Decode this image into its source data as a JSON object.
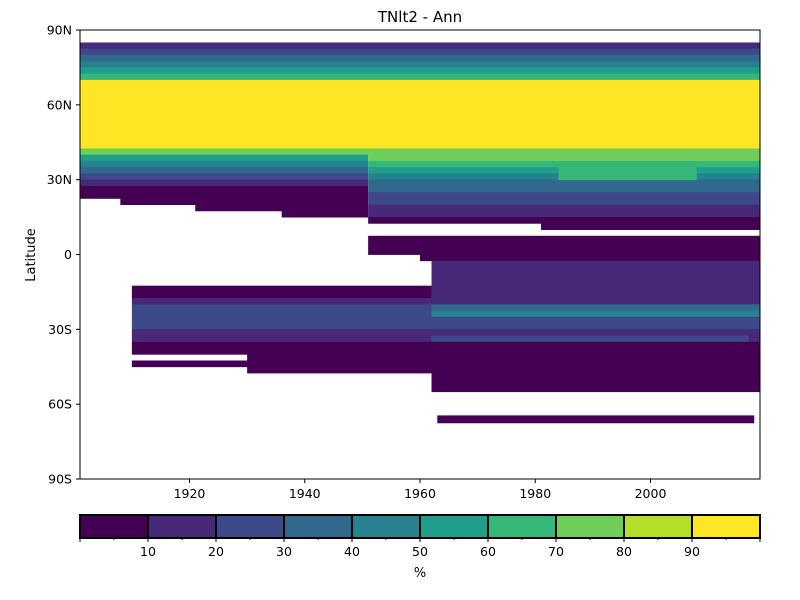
{
  "chart_data": {
    "type": "heatmap",
    "title": "TNlt2 - Ann",
    "xlabel": "",
    "ylabel": "Latitude",
    "xlim": [
      1901,
      2019
    ],
    "ylim": [
      -90,
      90
    ],
    "x_ticks": [
      {
        "value": 1920,
        "label": "1920"
      },
      {
        "value": 1940,
        "label": "1940"
      },
      {
        "value": 1960,
        "label": "1960"
      },
      {
        "value": 1980,
        "label": "1980"
      },
      {
        "value": 2000,
        "label": "2000"
      }
    ],
    "y_ticks": [
      {
        "value": 90,
        "label": "90N"
      },
      {
        "value": 60,
        "label": "60N"
      },
      {
        "value": 30,
        "label": "30N"
      },
      {
        "value": 0,
        "label": "0"
      },
      {
        "value": -30,
        "label": "30S"
      },
      {
        "value": -60,
        "label": "60S"
      },
      {
        "value": -90,
        "label": "90S"
      }
    ],
    "colorbar": {
      "label": "%",
      "range": [
        0,
        100
      ],
      "boundaries": [
        0,
        10,
        20,
        30,
        40,
        50,
        60,
        70,
        80,
        90,
        100
      ],
      "tick_labels": [
        "10",
        "20",
        "30",
        "40",
        "50",
        "60",
        "70",
        "80",
        "90"
      ],
      "colors": [
        "#440154",
        "#482878",
        "#3e4989",
        "#31688e",
        "#26828e",
        "#1f9e89",
        "#35b779",
        "#6ece58",
        "#b5de2b",
        "#fde725"
      ]
    },
    "cell_height_deg": 2.5,
    "bands": [
      {
        "lat": [
          82.5,
          85
        ],
        "x": [
          1901,
          2019
        ],
        "value": 15
      },
      {
        "lat": [
          80,
          82.5
        ],
        "x": [
          1901,
          2019
        ],
        "value": 25
      },
      {
        "lat": [
          77.5,
          80
        ],
        "x": [
          1901,
          2019
        ],
        "value": 35
      },
      {
        "lat": [
          75,
          77.5
        ],
        "x": [
          1901,
          2019
        ],
        "value": 45
      },
      {
        "lat": [
          72.5,
          75
        ],
        "x": [
          1901,
          2019
        ],
        "value": 55
      },
      {
        "lat": [
          70,
          72.5
        ],
        "x": [
          1901,
          2019
        ],
        "value": 65
      },
      {
        "lat": [
          42.5,
          70
        ],
        "x": [
          1901,
          2019
        ],
        "value": 95
      },
      {
        "lat": [
          40,
          42.5
        ],
        "x": [
          1901,
          2019
        ],
        "value": 75
      },
      {
        "lat": [
          37.5,
          40
        ],
        "x": [
          1901,
          1951
        ],
        "value": 55
      },
      {
        "lat": [
          35,
          37.5
        ],
        "x": [
          1901,
          1951
        ],
        "value": 45
      },
      {
        "lat": [
          32.5,
          35
        ],
        "x": [
          1901,
          1951
        ],
        "value": 35
      },
      {
        "lat": [
          30,
          32.5
        ],
        "x": [
          1901,
          1951
        ],
        "value": 25
      },
      {
        "lat": [
          27.5,
          30
        ],
        "x": [
          1901,
          1951
        ],
        "value": 15
      },
      {
        "lat": [
          25,
          27.5
        ],
        "x": [
          1901,
          1951
        ],
        "value": 5
      },
      {
        "lat": [
          22.5,
          25
        ],
        "x": [
          1901,
          1951
        ],
        "value": 5
      },
      {
        "lat": [
          20,
          22.5
        ],
        "x": [
          1908,
          1951
        ],
        "value": 5
      },
      {
        "lat": [
          17.5,
          20
        ],
        "x": [
          1921,
          1951
        ],
        "value": 5
      },
      {
        "lat": [
          15,
          17.5
        ],
        "x": [
          1936,
          1951
        ],
        "value": 5
      },
      {
        "lat": [
          37.5,
          40
        ],
        "x": [
          1951,
          2019
        ],
        "value": 75
      },
      {
        "lat": [
          35,
          37.5
        ],
        "x": [
          1951,
          2019
        ],
        "value": 65
      },
      {
        "lat": [
          32.5,
          35
        ],
        "x": [
          1951,
          2019
        ],
        "value": 55
      },
      {
        "lat": [
          30,
          32.5
        ],
        "x": [
          1951,
          2019
        ],
        "value": 45
      },
      {
        "lat": [
          27.5,
          30
        ],
        "x": [
          1951,
          2019
        ],
        "value": 35
      },
      {
        "lat": [
          25,
          27.5
        ],
        "x": [
          1951,
          2019
        ],
        "value": 35
      },
      {
        "lat": [
          22.5,
          25
        ],
        "x": [
          1951,
          2019
        ],
        "value": 25
      },
      {
        "lat": [
          20,
          22.5
        ],
        "x": [
          1951,
          2019
        ],
        "value": 25
      },
      {
        "lat": [
          17.5,
          20
        ],
        "x": [
          1951,
          2019
        ],
        "value": 15
      },
      {
        "lat": [
          15,
          17.5
        ],
        "x": [
          1951,
          2019
        ],
        "value": 15
      },
      {
        "lat": [
          12.5,
          15
        ],
        "x": [
          1951,
          2019
        ],
        "value": 5
      },
      {
        "lat": [
          10,
          12.5
        ],
        "x": [
          1981,
          2019
        ],
        "value": 5
      },
      {
        "lat": [
          32.5,
          35
        ],
        "x": [
          1984,
          2008
        ],
        "value": 65
      },
      {
        "lat": [
          30,
          32.5
        ],
        "x": [
          1984,
          2008
        ],
        "value": 65
      },
      {
        "lat": [
          5,
          7.5
        ],
        "x": [
          1951,
          2019
        ],
        "value": 5
      },
      {
        "lat": [
          2.5,
          5
        ],
        "x": [
          1951,
          2019
        ],
        "value": 5
      },
      {
        "lat": [
          0,
          2.5
        ],
        "x": [
          1951,
          2019
        ],
        "value": 5
      },
      {
        "lat": [
          -2.5,
          0
        ],
        "x": [
          1960,
          2019
        ],
        "value": 5
      },
      {
        "lat": [
          -5,
          -2.5
        ],
        "x": [
          1962,
          2019
        ],
        "value": 15
      },
      {
        "lat": [
          -7.5,
          -5
        ],
        "x": [
          1962,
          2019
        ],
        "value": 15
      },
      {
        "lat": [
          -10,
          -7.5
        ],
        "x": [
          1962,
          2019
        ],
        "value": 15
      },
      {
        "lat": [
          -12.5,
          -10
        ],
        "x": [
          1962,
          2019
        ],
        "value": 15
      },
      {
        "lat": [
          -15,
          -12.5
        ],
        "x": [
          1910,
          1962
        ],
        "value": 5
      },
      {
        "lat": [
          -17.5,
          -15
        ],
        "x": [
          1910,
          1962
        ],
        "value": 5
      },
      {
        "lat": [
          -15,
          -12.5
        ],
        "x": [
          1962,
          2019
        ],
        "value": 15
      },
      {
        "lat": [
          -17.5,
          -15
        ],
        "x": [
          1962,
          2019
        ],
        "value": 15
      },
      {
        "lat": [
          -20,
          -17.5
        ],
        "x": [
          1910,
          2019
        ],
        "value": 15
      },
      {
        "lat": [
          -22.5,
          -20
        ],
        "x": [
          1910,
          2019
        ],
        "value": 25
      },
      {
        "lat": [
          -25,
          -22.5
        ],
        "x": [
          1910,
          2019
        ],
        "value": 25
      },
      {
        "lat": [
          -22.5,
          -20
        ],
        "x": [
          1962,
          2019
        ],
        "value": 35
      },
      {
        "lat": [
          -25,
          -22.5
        ],
        "x": [
          1962,
          2019
        ],
        "value": 45
      },
      {
        "lat": [
          -27.5,
          -25
        ],
        "x": [
          1910,
          2019
        ],
        "value": 25
      },
      {
        "lat": [
          -30,
          -27.5
        ],
        "x": [
          1910,
          2019
        ],
        "value": 25
      },
      {
        "lat": [
          -32.5,
          -30
        ],
        "x": [
          1910,
          2019
        ],
        "value": 15
      },
      {
        "lat": [
          -35,
          -32.5
        ],
        "x": [
          1910,
          2019
        ],
        "value": 15
      },
      {
        "lat": [
          -35,
          -32.5
        ],
        "x": [
          1962,
          2017
        ],
        "value": 25
      },
      {
        "lat": [
          -37.5,
          -35
        ],
        "x": [
          1910,
          2019
        ],
        "value": 5
      },
      {
        "lat": [
          -40,
          -37.5
        ],
        "x": [
          1910,
          2019
        ],
        "value": 5
      },
      {
        "lat": [
          -42.5,
          -40
        ],
        "x": [
          1930,
          2019
        ],
        "value": 5
      },
      {
        "lat": [
          -45,
          -42.5
        ],
        "x": [
          1910,
          2019
        ],
        "value": 5
      },
      {
        "lat": [
          -47.5,
          -45
        ],
        "x": [
          1930,
          2019
        ],
        "value": 5
      },
      {
        "lat": [
          -50,
          -47.5
        ],
        "x": [
          1962,
          2019
        ],
        "value": 5
      },
      {
        "lat": [
          -52.5,
          -50
        ],
        "x": [
          1962,
          2019
        ],
        "value": 5
      },
      {
        "lat": [
          -55,
          -52.5
        ],
        "x": [
          1962,
          2019
        ],
        "value": 5
      },
      {
        "lat": [
          -67.5,
          -64.5
        ],
        "x": [
          1963,
          2018
        ],
        "value": 5
      }
    ]
  }
}
